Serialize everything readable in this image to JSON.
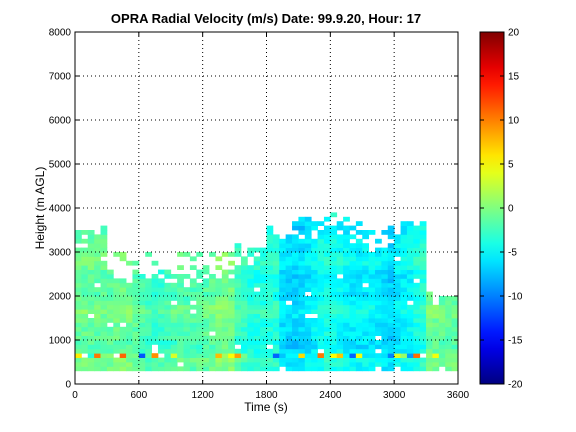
{
  "chart_data": {
    "type": "heatmap",
    "title": "OPRA Radial Velocity (m/s)  Date: 99.9.20, Hour: 17",
    "xlabel": "Time (s)",
    "ylabel": "Height (m AGL)",
    "xlim": [
      0,
      3600
    ],
    "ylim": [
      0,
      8000
    ],
    "xticks": [
      "0",
      "600",
      "1200",
      "1800",
      "2400",
      "3000",
      "3600"
    ],
    "yticks": [
      "0",
      "1000",
      "2000",
      "3000",
      "4000",
      "5000",
      "6000",
      "7000",
      "8000"
    ],
    "grid": true,
    "colorbar": {
      "label": "",
      "clim": [
        -20,
        20
      ],
      "ticks": [
        "-20",
        "-15",
        "-10",
        "-5",
        "0",
        "5",
        "10",
        "15",
        "20"
      ],
      "colormap": "jet"
    },
    "missing_color": "#ffffff",
    "data_bottom_height": 300,
    "cell_height": 100,
    "cell_time": 60,
    "coverage": [
      {
        "x": [
          0,
          300
        ],
        "top": 3400,
        "top_sparse": 3600
      },
      {
        "x": [
          300,
          1500
        ],
        "top": 2300,
        "top_sparse": 3000
      },
      {
        "x": [
          1500,
          1800
        ],
        "top": 2700,
        "top_sparse": 3200
      },
      {
        "x": [
          1800,
          2100
        ],
        "top": 3200,
        "top_sparse": 3700
      },
      {
        "x": [
          2100,
          2700
        ],
        "top": 3400,
        "top_sparse": 3900
      },
      {
        "x": [
          2700,
          3000
        ],
        "top": 3000,
        "top_sparse": 3600
      },
      {
        "x": [
          3000,
          3300
        ],
        "top": 3500,
        "top_sparse": 3700
      },
      {
        "x": [
          3300,
          3600
        ],
        "top": 1900,
        "top_sparse": 2100
      }
    ],
    "mean_velocity": [
      {
        "x": [
          0,
          1500
        ],
        "value": -1.5
      },
      {
        "x": [
          1500,
          1900
        ],
        "value": -3
      },
      {
        "x": [
          1900,
          3000
        ],
        "value": -5.5
      },
      {
        "x": [
          3000,
          3300
        ],
        "value": -4
      },
      {
        "x": [
          3300,
          3600
        ],
        "value": -1.5
      }
    ],
    "surface_streak": {
      "height": 600,
      "x": [
        0,
        3600
      ],
      "values_range": [
        -12,
        12
      ]
    }
  }
}
